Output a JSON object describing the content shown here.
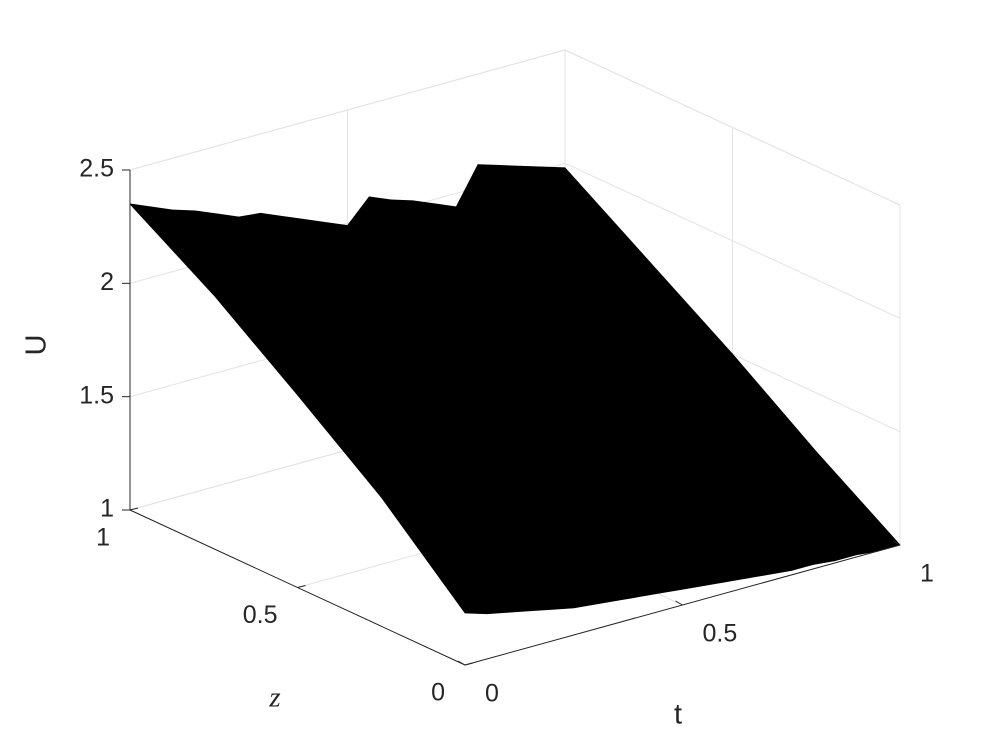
{
  "chart_data": {
    "type": "surface",
    "x": [
      0,
      0.05,
      0.1,
      0.15,
      0.2,
      0.25,
      0.3,
      0.35,
      0.4,
      0.45,
      0.5,
      0.55,
      0.6,
      0.65,
      0.7,
      0.75,
      0.8,
      0.85,
      0.9,
      0.95,
      1
    ],
    "y": [
      0,
      0.25,
      0.5,
      0.75,
      1
    ],
    "values": [
      [
        1.23,
        1.2,
        1.18,
        1.16,
        1.14,
        1.12,
        1.11,
        1.1,
        1.09,
        1.08,
        1.07,
        1.06,
        1.05,
        1.04,
        1.03,
        1.02,
        1.02,
        1.01,
        1.01,
        1.0,
        1.0
      ],
      [
        1.57,
        1.55,
        1.53,
        1.51,
        1.49,
        1.47,
        1.41,
        1.4,
        1.38,
        1.37,
        1.35,
        1.34,
        1.32,
        1.3,
        1.28,
        1.26,
        1.29,
        1.28,
        1.27,
        1.25,
        1.24
      ],
      [
        1.85,
        1.82,
        1.79,
        1.76,
        1.73,
        1.7,
        1.67,
        1.65,
        1.62,
        1.59,
        1.57,
        1.57,
        1.55,
        1.53,
        1.51,
        1.49,
        1.55,
        1.54,
        1.53,
        1.51,
        1.5
      ],
      [
        2.12,
        2.09,
        2.05,
        2.02,
        1.98,
        1.95,
        1.92,
        1.88,
        1.85,
        1.81,
        1.78,
        1.82,
        1.79,
        1.77,
        1.74,
        1.71,
        1.83,
        1.81,
        1.78,
        1.76,
        1.74
      ],
      [
        2.35,
        2.31,
        2.27,
        2.24,
        2.2,
        2.16,
        2.15,
        2.11,
        2.07,
        2.03,
        1.99,
        2.09,
        2.05,
        2.02,
        1.98,
        1.94,
        2.1,
        2.07,
        2.04,
        2.01,
        1.98
      ]
    ],
    "xlabel": "t",
    "ylabel": "z",
    "zlabel": "U",
    "xlim": [
      0,
      1
    ],
    "ylim": [
      0,
      1
    ],
    "zlim": [
      1,
      2.5
    ],
    "xticks": [
      0,
      0.5,
      1
    ],
    "yticks": [
      0,
      0.5,
      1
    ],
    "zticks": [
      1,
      1.5,
      2,
      2.5
    ],
    "colormap": "parula",
    "edgecolor": "#000000",
    "grid": true
  }
}
